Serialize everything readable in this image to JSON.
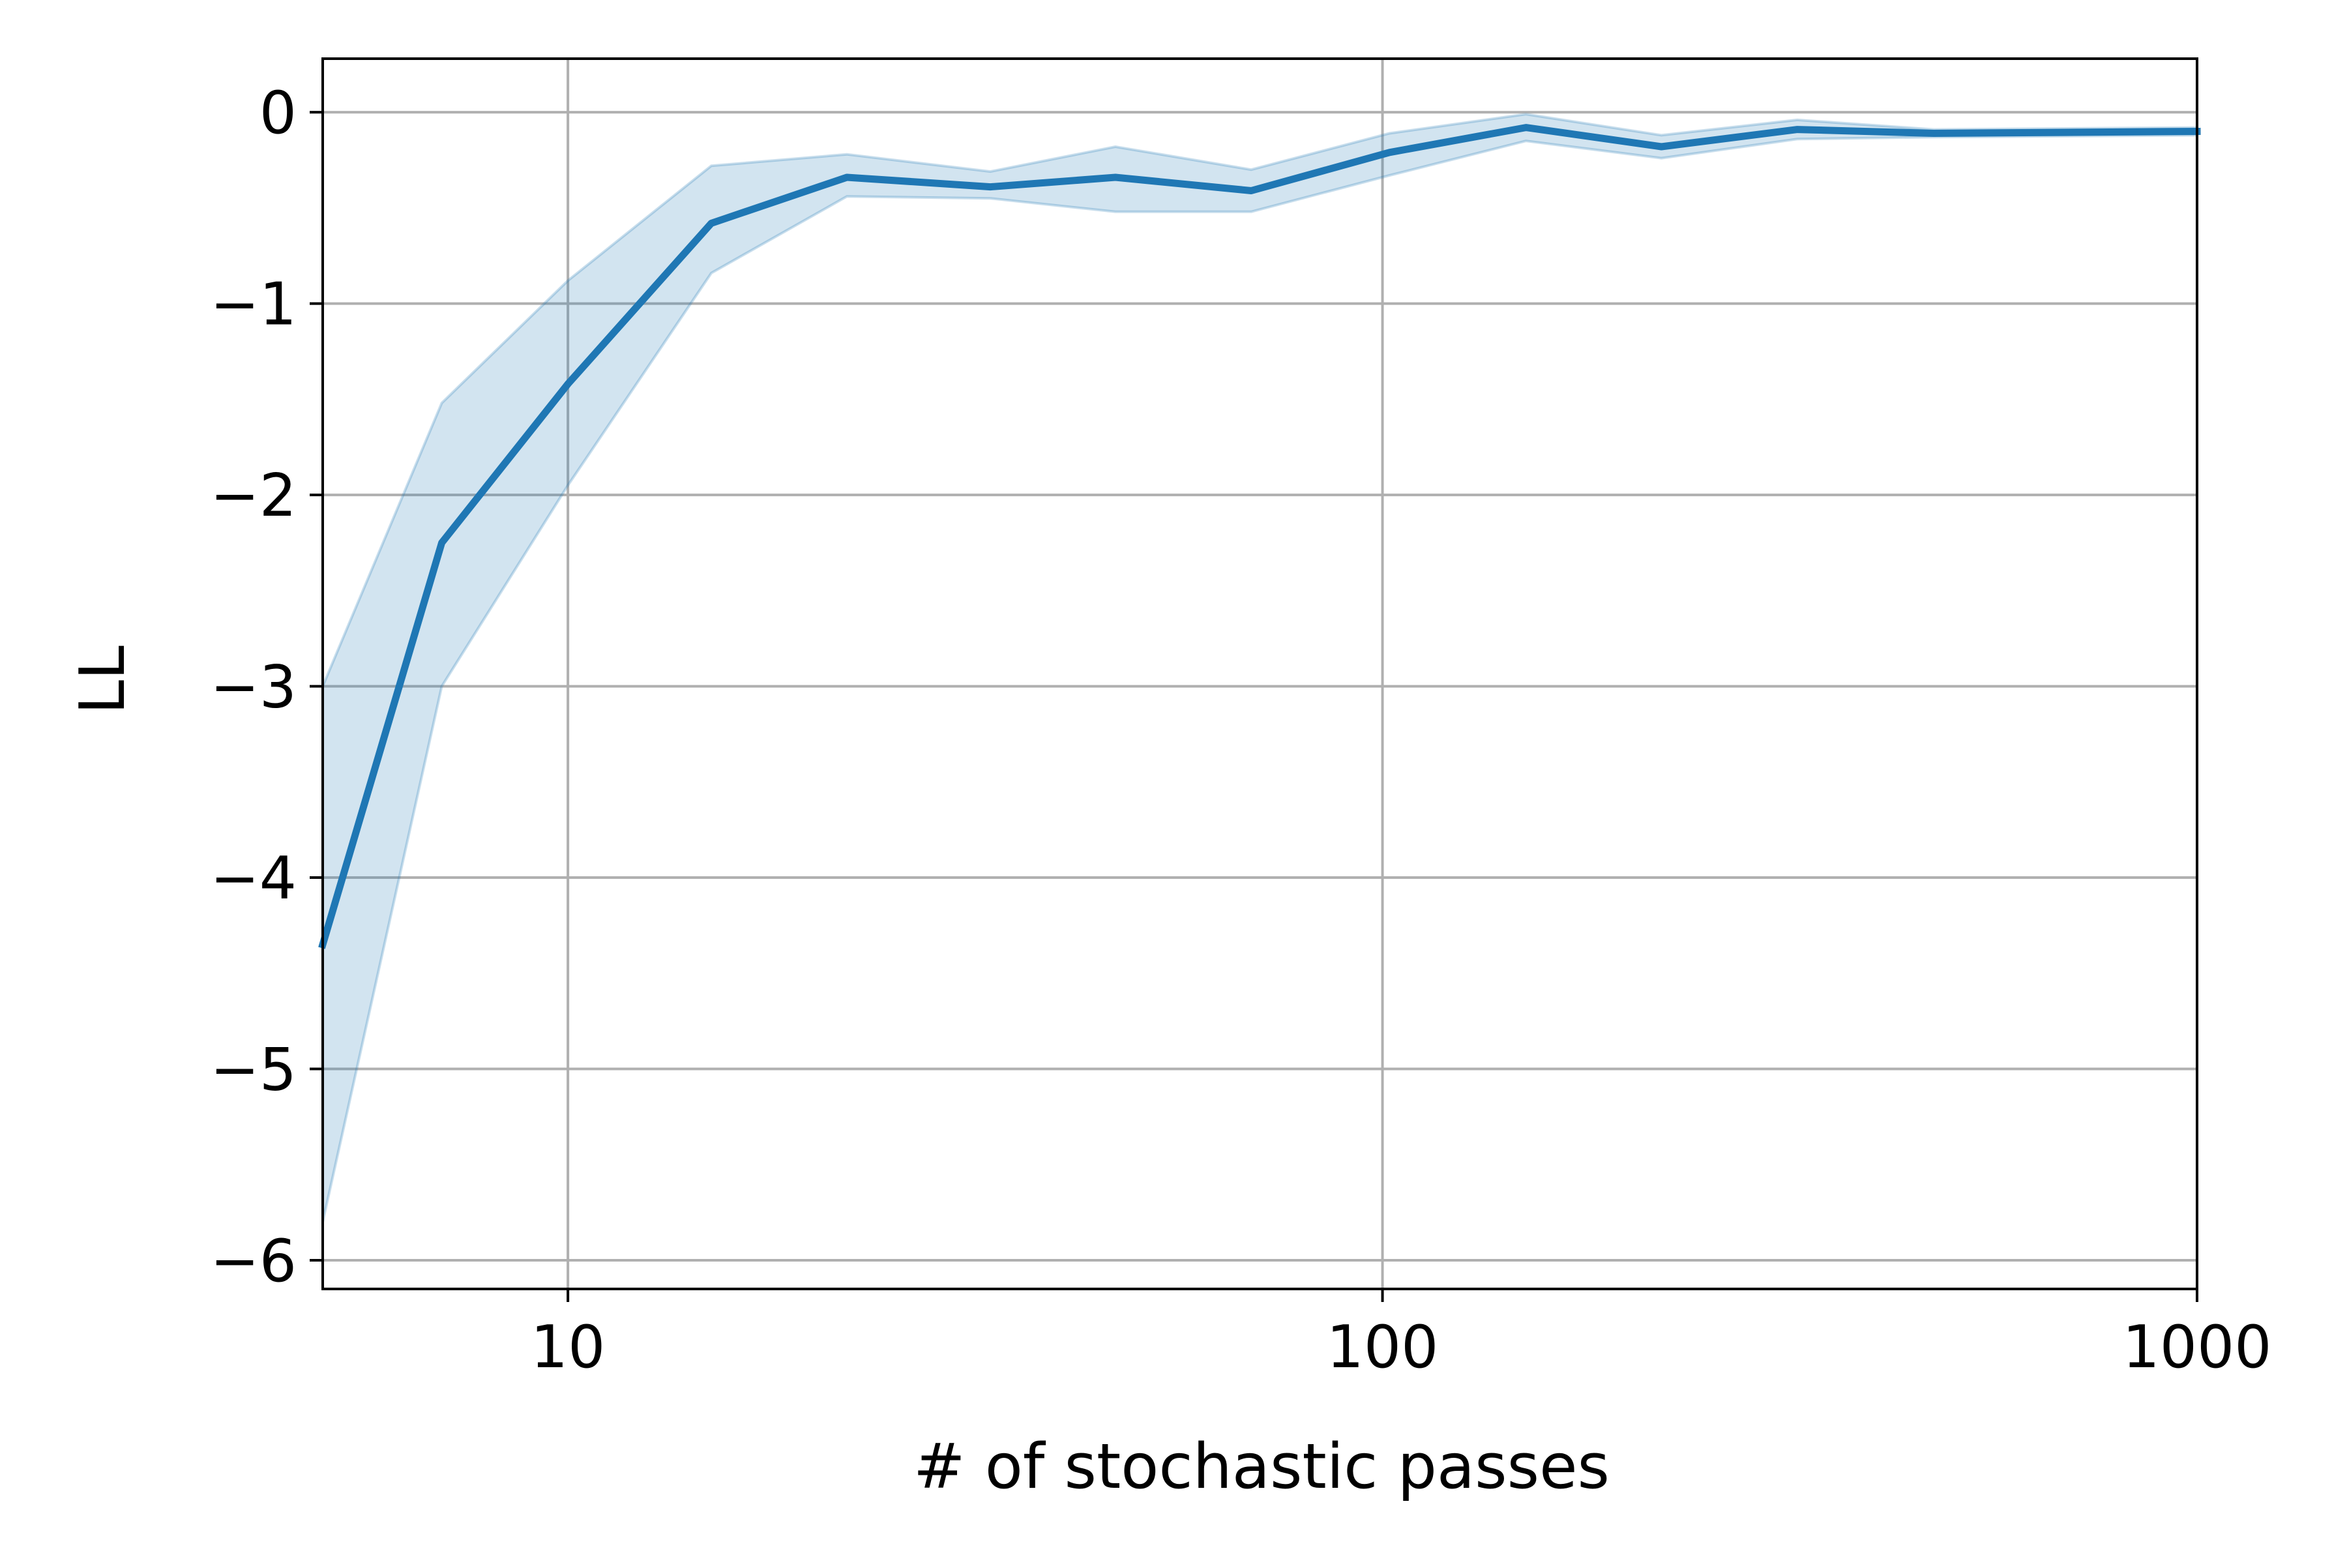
{
  "chart_data": {
    "type": "line",
    "title": "",
    "xlabel": "# of stochastic passes",
    "ylabel": "LL",
    "xscale": "log",
    "xlim": [
      5,
      1000
    ],
    "ylim": [
      -6.15,
      0.28
    ],
    "grid": true,
    "x_ticks": [
      {
        "value": 10,
        "label": "10"
      },
      {
        "value": 100,
        "label": "100"
      },
      {
        "value": 1000,
        "label": "1000"
      }
    ],
    "y_ticks": [
      {
        "value": 0,
        "label": "0"
      },
      {
        "value": -1,
        "label": "−1"
      },
      {
        "value": -2,
        "label": "−2"
      },
      {
        "value": -3,
        "label": "−3"
      },
      {
        "value": -4,
        "label": "−4"
      },
      {
        "value": -5,
        "label": "−5"
      },
      {
        "value": -6,
        "label": "−6"
      }
    ],
    "series": [
      {
        "color": "#1f77b4",
        "band_color": "#1f77b4",
        "band_opacity": 0.2,
        "x": [
          5,
          7,
          10,
          15,
          22,
          33,
          47,
          69,
          102,
          150,
          220,
          323,
          475,
          1000
        ],
        "y": [
          -4.35,
          -2.25,
          -1.42,
          -0.58,
          -0.34,
          -0.39,
          -0.34,
          -0.41,
          -0.21,
          -0.08,
          -0.18,
          -0.09,
          -0.11,
          -0.1
        ],
        "lower": [
          -5.8,
          -3.0,
          -1.95,
          -0.84,
          -0.44,
          -0.45,
          -0.52,
          -0.52,
          -0.33,
          -0.15,
          -0.24,
          -0.14,
          -0.13,
          -0.12
        ],
        "upper": [
          -3.0,
          -1.52,
          -0.88,
          -0.28,
          -0.22,
          -0.31,
          -0.18,
          -0.3,
          -0.11,
          -0.01,
          -0.12,
          -0.04,
          -0.09,
          -0.08
        ]
      }
    ]
  }
}
